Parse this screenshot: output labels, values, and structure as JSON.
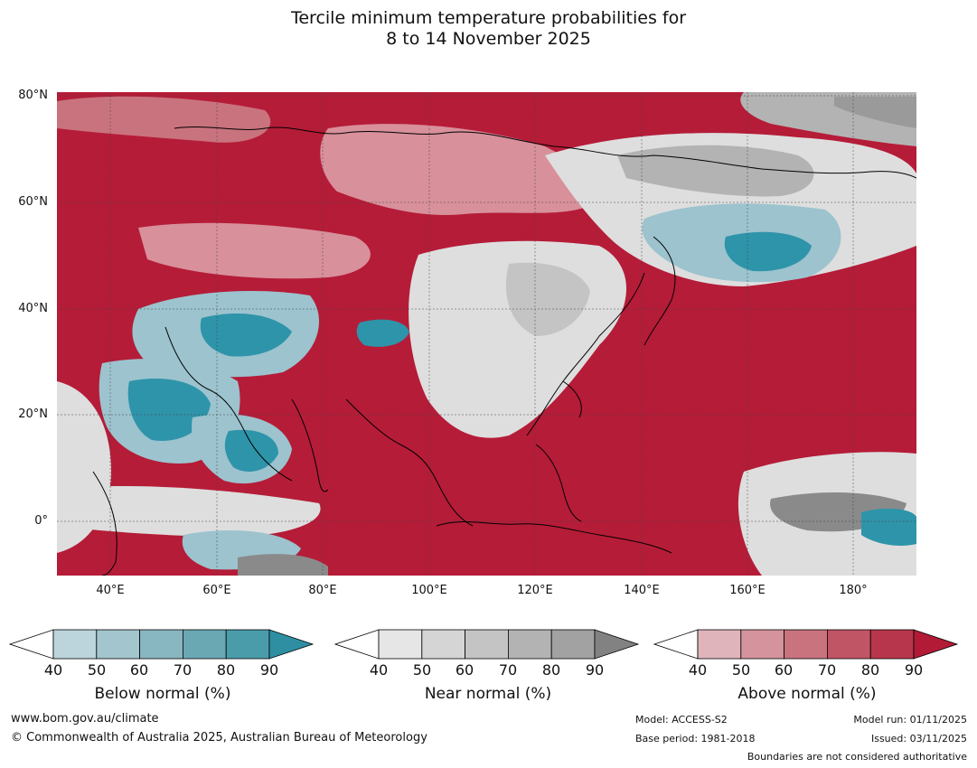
{
  "title": {
    "line1": "Tercile minimum temperature probabilities for",
    "line2": "8 to 14 November 2025"
  },
  "map": {
    "lat_labels": [
      "80°N",
      "60°N",
      "40°N",
      "20°N",
      "0°"
    ],
    "lon_labels": [
      "40°E",
      "60°E",
      "80°E",
      "100°E",
      "120°E",
      "140°E",
      "160°E",
      "180°"
    ],
    "colors": {
      "above_main": "#b51c38",
      "above_light": "#d8909b",
      "near_light": "#dedede",
      "near_mid": "#b3b3b3",
      "near_dark": "#8a8a8a",
      "below_light": "#9cc3ce",
      "below_dark": "#2e94a9",
      "coast": "#000000",
      "border": "#8a8a8a"
    }
  },
  "legends": {
    "below": {
      "title": "Below normal (%)",
      "ticks": [
        "40",
        "50",
        "60",
        "70",
        "80",
        "90"
      ],
      "colors": [
        "#ffffff",
        "#bcd4db",
        "#a3c5cd",
        "#88b6c1",
        "#6aa8b4",
        "#4b9cab",
        "#2e8fa3"
      ]
    },
    "near": {
      "title": "Near normal (%)",
      "ticks": [
        "40",
        "50",
        "60",
        "70",
        "80",
        "90"
      ],
      "colors": [
        "#ffffff",
        "#e6e6e6",
        "#d5d5d5",
        "#c4c4c4",
        "#b3b3b3",
        "#a2a2a2",
        "#828282"
      ]
    },
    "above": {
      "title": "Above normal (%)",
      "ticks": [
        "40",
        "50",
        "60",
        "70",
        "80",
        "90"
      ],
      "colors": [
        "#ffffff",
        "#dfb5bb",
        "#d4939d",
        "#c9737f",
        "#c05566",
        "#b8364b",
        "#b21a36"
      ]
    }
  },
  "footer": {
    "website": "www.bom.gov.au/climate",
    "copyright": "© Commonwealth of Australia 2025, Australian Bureau of Meteorology",
    "model": "Model: ACCESS-S2",
    "base_period": "Base period: 1981-2018",
    "model_run": "Model run: 01/11/2025",
    "issued": "Issued: 03/11/2025",
    "disclaimer": "Boundaries are not considered authoritative"
  }
}
